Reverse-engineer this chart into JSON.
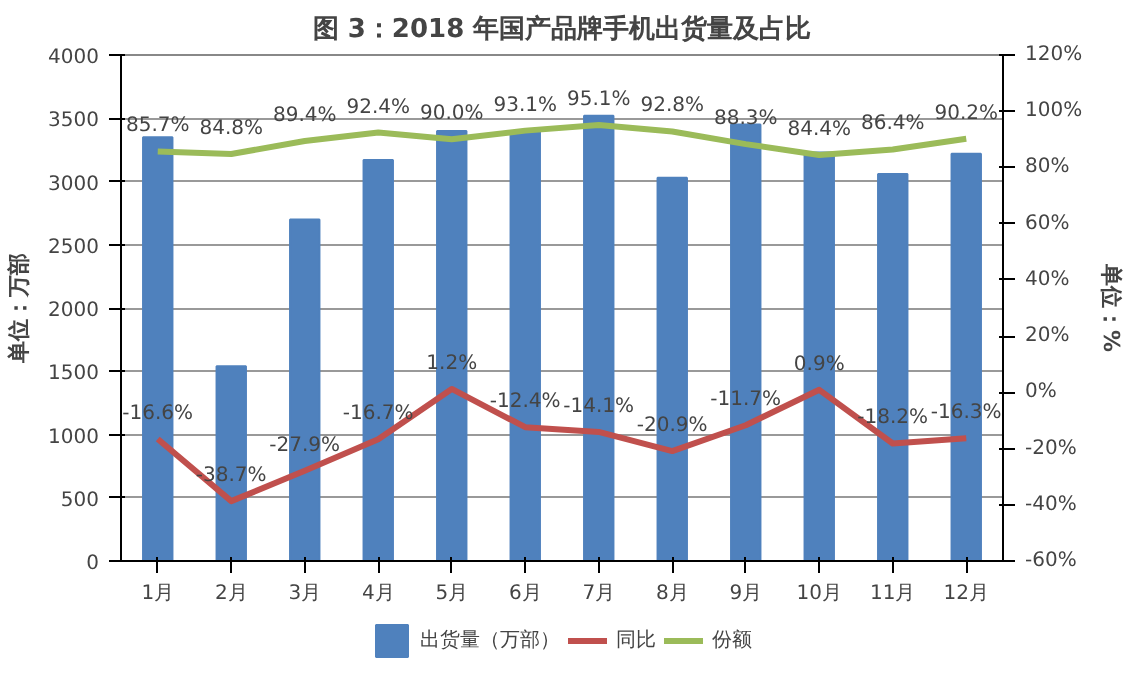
{
  "chart_data": {
    "type": "bar",
    "title": "图 3：2018 年国产品牌手机出货量及占比",
    "categories": [
      "1月",
      "2月",
      "3月",
      "4月",
      "5月",
      "6月",
      "7月",
      "8月",
      "9月",
      "10月",
      "11月",
      "12月"
    ],
    "series": [
      {
        "name": "出货量（万部）",
        "color": "#4f81bd",
        "values": [
          3350,
          1540,
          2700,
          3170,
          3400,
          3400,
          3520,
          3030,
          3450,
          3230,
          3060,
          3220
        ]
      },
      {
        "name": "同比",
        "type": "line",
        "axis": "y2",
        "color": "#c0504d",
        "values": [
          -16.6,
          -38.7,
          -27.9,
          -16.7,
          1.2,
          -12.4,
          -14.1,
          -20.9,
          -11.7,
          0.9,
          -18.2,
          -16.3
        ],
        "value_labels": [
          "-16.6%",
          "-38.7%",
          "-27.9%",
          "-16.7%",
          "1.2%",
          "-12.4%",
          "-14.1%",
          "-20.9%",
          "-11.7%",
          "0.9%",
          "-18.2%",
          "-16.3%"
        ]
      },
      {
        "name": "份额",
        "type": "line",
        "axis": "y2",
        "color": "#9bbb59",
        "values": [
          85.7,
          84.8,
          89.4,
          92.4,
          90.0,
          93.1,
          95.1,
          92.8,
          88.3,
          84.4,
          86.4,
          90.2
        ],
        "value_labels": [
          "85.7%",
          "84.8%",
          "89.4%",
          "92.4%",
          "90.0%",
          "93.1%",
          "95.1%",
          "92.8%",
          "88.3%",
          "84.4%",
          "86.4%",
          "90.2%"
        ]
      }
    ],
    "ylabel": "单位：万部",
    "y2label": "单位：%",
    "ylim": [
      0,
      4000
    ],
    "yticks": [
      0,
      500,
      1000,
      1500,
      2000,
      2500,
      3000,
      3500,
      4000
    ],
    "y2lim": [
      -60,
      120
    ],
    "y2ticks": [
      {
        "value": -60,
        "label": "-60%"
      },
      {
        "value": -40,
        "label": "-40%"
      },
      {
        "value": -20,
        "label": "-20%"
      },
      {
        "value": 0,
        "label": "0%"
      },
      {
        "value": 20,
        "label": "20%"
      },
      {
        "value": 40,
        "label": "40%"
      },
      {
        "value": 60,
        "label": "60%"
      },
      {
        "value": 80,
        "label": "80%"
      },
      {
        "value": 100,
        "label": "100%"
      },
      {
        "value": 120,
        "label": "120%"
      }
    ],
    "grid": "y",
    "legend": "bottom"
  }
}
